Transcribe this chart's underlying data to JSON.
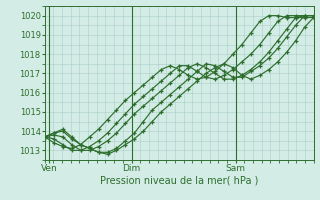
{
  "background_color": "#d4ece6",
  "grid_color": "#aacfc8",
  "line_color": "#2d6e2d",
  "xlabel": "Pression niveau de la mer( hPa )",
  "ylim": [
    1012.6,
    1020.4
  ],
  "xlim": [
    0,
    31
  ],
  "yticks": [
    1013,
    1014,
    1015,
    1016,
    1017,
    1018,
    1019,
    1020
  ],
  "xtick_labels": [
    "Ven",
    "Dim",
    "Sam"
  ],
  "xtick_positions": [
    0.5,
    10,
    22
  ],
  "vline_positions": [
    0.5,
    10,
    22
  ],
  "series": [
    [
      1013.7,
      1013.9,
      1014.1,
      1013.7,
      1013.3,
      1013.1,
      1012.9,
      1012.8,
      1013.0,
      1013.3,
      1013.6,
      1014.0,
      1014.5,
      1015.0,
      1015.4,
      1015.8,
      1016.2,
      1016.6,
      1017.0,
      1017.3,
      1017.5,
      1017.3,
      1016.9,
      1016.7,
      1016.9,
      1017.2,
      1017.6,
      1018.1,
      1018.7,
      1019.4,
      1019.9
    ],
    [
      1013.7,
      1013.9,
      1014.0,
      1013.6,
      1013.3,
      1013.1,
      1012.9,
      1012.9,
      1013.1,
      1013.5,
      1013.9,
      1014.5,
      1015.1,
      1015.5,
      1015.9,
      1016.3,
      1016.7,
      1017.1,
      1017.5,
      1017.4,
      1017.1,
      1016.8,
      1016.8,
      1017.1,
      1017.4,
      1017.8,
      1018.3,
      1018.9,
      1019.5,
      1020.0,
      1020.0
    ],
    [
      1013.7,
      1013.8,
      1013.7,
      1013.3,
      1013.0,
      1013.0,
      1013.2,
      1013.5,
      1013.9,
      1014.4,
      1014.9,
      1015.3,
      1015.7,
      1016.1,
      1016.5,
      1016.9,
      1017.3,
      1017.5,
      1017.3,
      1017.0,
      1016.7,
      1016.7,
      1016.9,
      1017.2,
      1017.6,
      1018.1,
      1018.7,
      1019.3,
      1019.9,
      1020.0,
      1020.0
    ],
    [
      1013.7,
      1013.6,
      1013.3,
      1013.0,
      1013.0,
      1013.2,
      1013.5,
      1013.9,
      1014.4,
      1014.9,
      1015.4,
      1015.8,
      1016.2,
      1016.6,
      1017.0,
      1017.4,
      1017.4,
      1017.1,
      1016.8,
      1016.7,
      1016.9,
      1017.2,
      1017.6,
      1018.0,
      1018.5,
      1019.1,
      1019.7,
      1020.0,
      1020.0,
      1020.0,
      1020.0
    ],
    [
      1013.7,
      1013.4,
      1013.2,
      1013.1,
      1013.3,
      1013.7,
      1014.1,
      1014.6,
      1015.1,
      1015.6,
      1016.0,
      1016.4,
      1016.8,
      1017.2,
      1017.4,
      1017.2,
      1016.9,
      1016.7,
      1016.8,
      1017.1,
      1017.5,
      1018.0,
      1018.5,
      1019.1,
      1019.7,
      1020.0,
      1020.0,
      1019.9,
      1019.9,
      1019.9,
      1019.9
    ]
  ]
}
